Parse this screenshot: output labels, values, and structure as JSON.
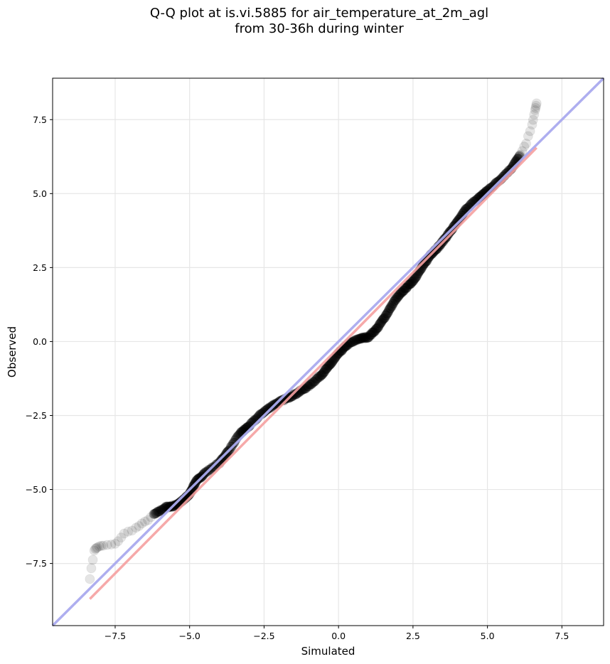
{
  "chart_data": {
    "type": "scatter",
    "title_line1": "Q-Q plot at is.vi.5885 for air_temperature_at_2m_agl",
    "title_line2": "from 30-36h during winter",
    "xlabel": "Simulated",
    "ylabel": "Observed",
    "xlim": [
      -9.6,
      8.9
    ],
    "ylim": [
      -9.6,
      8.9
    ],
    "xticks": [
      -7.5,
      -5.0,
      -2.5,
      0.0,
      2.5,
      5.0,
      7.5
    ],
    "xtick_labels": [
      "−7.5",
      "−5.0",
      "−2.5",
      "0.0",
      "2.5",
      "5.0",
      "7.5"
    ],
    "yticks": [
      -7.5,
      -5.0,
      -2.5,
      0.0,
      2.5,
      5.0,
      7.5
    ],
    "ytick_labels": [
      "−7.5",
      "−5.0",
      "−2.5",
      "0.0",
      "2.5",
      "5.0",
      "7.5"
    ],
    "grid": true,
    "reference_line": {
      "color": "#aaaaee",
      "from": [
        -9.6,
        -9.6
      ],
      "to": [
        8.9,
        8.9
      ]
    },
    "fit_line": {
      "color": "#f5a0a0",
      "from": [
        -8.35,
        -8.7
      ],
      "to": [
        6.65,
        6.55
      ]
    },
    "point_color": "#000000",
    "quantile_anchors": [
      [
        -8.35,
        -8.0
      ],
      [
        -8.2,
        -7.05
      ],
      [
        -8.1,
        -6.95
      ],
      [
        -7.9,
        -6.9
      ],
      [
        -7.5,
        -6.85
      ],
      [
        -7.2,
        -6.5
      ],
      [
        -6.8,
        -6.3
      ],
      [
        -6.5,
        -6.1
      ],
      [
        -6.2,
        -5.85
      ],
      [
        -5.8,
        -5.6
      ],
      [
        -5.5,
        -5.55
      ],
      [
        -5.2,
        -5.35
      ],
      [
        -5.0,
        -5.15
      ],
      [
        -4.8,
        -4.75
      ],
      [
        -4.5,
        -4.45
      ],
      [
        -4.0,
        -4.1
      ],
      [
        -3.7,
        -3.7
      ],
      [
        -3.3,
        -3.1
      ],
      [
        -3.0,
        -2.85
      ],
      [
        -2.6,
        -2.45
      ],
      [
        -2.2,
        -2.15
      ],
      [
        -1.8,
        -1.95
      ],
      [
        -1.4,
        -1.75
      ],
      [
        -1.0,
        -1.5
      ],
      [
        -0.6,
        -1.15
      ],
      [
        -0.3,
        -0.8
      ],
      [
        0.0,
        -0.4
      ],
      [
        0.3,
        -0.1
      ],
      [
        0.7,
        0.1
      ],
      [
        1.0,
        0.15
      ],
      [
        1.3,
        0.45
      ],
      [
        1.6,
        0.9
      ],
      [
        1.9,
        1.4
      ],
      [
        2.2,
        1.75
      ],
      [
        2.5,
        2.05
      ],
      [
        2.8,
        2.5
      ],
      [
        3.1,
        2.95
      ],
      [
        3.4,
        3.25
      ],
      [
        3.7,
        3.65
      ],
      [
        4.0,
        4.05
      ],
      [
        4.3,
        4.5
      ],
      [
        4.7,
        4.85
      ],
      [
        5.0,
        5.1
      ],
      [
        5.4,
        5.45
      ],
      [
        5.8,
        5.85
      ],
      [
        6.1,
        6.3
      ],
      [
        6.3,
        6.7
      ],
      [
        6.5,
        7.35
      ],
      [
        6.6,
        7.8
      ],
      [
        6.65,
        8.05
      ]
    ]
  }
}
